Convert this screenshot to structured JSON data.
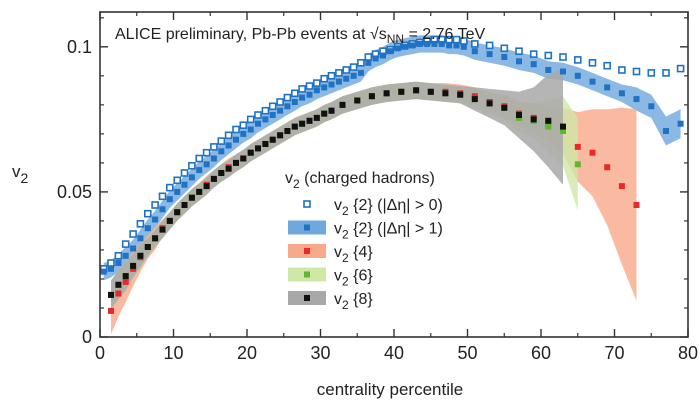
{
  "chart_data": {
    "type": "scatter",
    "title_prefix": "ALICE preliminary, Pb-Pb events at ",
    "title_sqrt": "√",
    "title_s": "s",
    "title_sub": "NN",
    "title_suffix": " = 2.76 TeV",
    "ylabel_main": "v",
    "ylabel_sub": "2",
    "xlabel": "centrality percentile",
    "xlim": [
      0,
      80
    ],
    "ylim": [
      0,
      0.112
    ],
    "xticks": [
      0,
      10,
      20,
      30,
      40,
      50,
      60,
      70,
      80
    ],
    "xtick_labels": [
      "0",
      "10",
      "20",
      "30",
      "40",
      "50",
      "60",
      "70",
      "80"
    ],
    "yticks": [
      0,
      0.05,
      0.1
    ],
    "ytick_labels": [
      "0",
      "0.05",
      "0.1"
    ],
    "grid": false,
    "legend_position": "center-right",
    "legend_title_main": "v",
    "legend_title_sub": "2",
    "legend_title_suffix": " (charged hadrons)",
    "series": [
      {
        "name_main": "v",
        "name_sub": "2",
        "name_suffix": " {2} (|Δη| > 0)",
        "marker": "open-square",
        "color": "#1f72c4",
        "x": [
          0.5,
          1.5,
          2.5,
          3.5,
          4.5,
          5.5,
          6.5,
          7.5,
          8.5,
          9.5,
          10.5,
          11.5,
          12.5,
          13.5,
          14.5,
          15.5,
          16.5,
          17.5,
          18.5,
          19.5,
          20.5,
          21.5,
          22.5,
          23.5,
          24.5,
          25.5,
          26.5,
          27.5,
          28.5,
          29.5,
          30.5,
          31.5,
          32.5,
          33.5,
          34.5,
          35.5,
          36.5,
          37.5,
          38.5,
          39.5,
          40.5,
          41.5,
          42.5,
          43.5,
          44.5,
          45.5,
          46.5,
          47.5,
          48.5,
          49.5,
          51,
          53,
          55,
          57,
          59,
          61,
          63,
          65,
          67,
          69,
          71,
          73,
          75,
          77,
          79
        ],
        "y": [
          0.0235,
          0.0255,
          0.028,
          0.032,
          0.0355,
          0.039,
          0.0425,
          0.0455,
          0.0485,
          0.0515,
          0.054,
          0.0565,
          0.059,
          0.0615,
          0.0635,
          0.0655,
          0.0675,
          0.0695,
          0.0715,
          0.073,
          0.075,
          0.0765,
          0.078,
          0.0795,
          0.081,
          0.0825,
          0.084,
          0.0855,
          0.0865,
          0.0875,
          0.089,
          0.09,
          0.091,
          0.092,
          0.093,
          0.0945,
          0.0965,
          0.0975,
          0.0985,
          0.099,
          0.1,
          0.1005,
          0.101,
          0.1015,
          0.102,
          0.1025,
          0.1025,
          0.1025,
          0.1025,
          0.102,
          0.101,
          0.1005,
          0.0995,
          0.0985,
          0.0975,
          0.097,
          0.0965,
          0.0955,
          0.0945,
          0.0935,
          0.092,
          0.0915,
          0.091,
          0.091,
          0.0925
        ]
      },
      {
        "name_main": "v",
        "name_sub": "2",
        "name_suffix": " {2} (|Δη| > 1)",
        "marker": "filled-square",
        "color": "#1f72c4",
        "band_color": "#6fa8dc",
        "x": [
          0.5,
          1.5,
          2.5,
          3.5,
          4.5,
          5.5,
          6.5,
          7.5,
          8.5,
          9.5,
          10.5,
          11.5,
          12.5,
          13.5,
          14.5,
          15.5,
          16.5,
          17.5,
          18.5,
          19.5,
          20.5,
          21.5,
          22.5,
          23.5,
          24.5,
          25.5,
          26.5,
          27.5,
          28.5,
          29.5,
          30.5,
          31.5,
          32.5,
          33.5,
          34.5,
          35.5,
          36.5,
          37.5,
          38.5,
          39.5,
          40.5,
          41.5,
          42.5,
          43.5,
          44.5,
          45.5,
          46.5,
          47.5,
          48.5,
          49.5,
          51,
          53,
          55,
          57,
          59,
          61,
          63,
          65,
          67,
          69,
          71,
          73,
          75,
          77,
          79
        ],
        "y": [
          0.0225,
          0.0235,
          0.0255,
          0.028,
          0.0305,
          0.034,
          0.0375,
          0.0405,
          0.044,
          0.0475,
          0.05,
          0.0525,
          0.055,
          0.0575,
          0.0595,
          0.0615,
          0.064,
          0.066,
          0.068,
          0.07,
          0.0715,
          0.0735,
          0.075,
          0.0765,
          0.078,
          0.0795,
          0.081,
          0.0825,
          0.0835,
          0.085,
          0.086,
          0.087,
          0.088,
          0.089,
          0.09,
          0.091,
          0.0945,
          0.096,
          0.097,
          0.0985,
          0.0995,
          0.1,
          0.1005,
          0.101,
          0.101,
          0.101,
          0.101,
          0.1005,
          0.1005,
          0.1,
          0.0985,
          0.0975,
          0.0965,
          0.095,
          0.094,
          0.092,
          0.0915,
          0.09,
          0.088,
          0.086,
          0.084,
          0.082,
          0.0795,
          0.071,
          0.0735
        ],
        "band": [
          0.003,
          0.003,
          0.003,
          0.003,
          0.003,
          0.003,
          0.003,
          0.003,
          0.003,
          0.003,
          0.003,
          0.003,
          0.003,
          0.003,
          0.003,
          0.003,
          0.003,
          0.003,
          0.003,
          0.003,
          0.003,
          0.003,
          0.003,
          0.003,
          0.003,
          0.003,
          0.003,
          0.003,
          0.003,
          0.003,
          0.003,
          0.003,
          0.003,
          0.003,
          0.003,
          0.003,
          0.003,
          0.003,
          0.003,
          0.003,
          0.003,
          0.003,
          0.003,
          0.003,
          0.003,
          0.003,
          0.003,
          0.003,
          0.003,
          0.003,
          0.003,
          0.003,
          0.003,
          0.003,
          0.003,
          0.003,
          0.003,
          0.003,
          0.003,
          0.003,
          0.003,
          0.004,
          0.004,
          0.005,
          0.005
        ]
      },
      {
        "name_main": "v",
        "name_sub": "2",
        "name_suffix": " {4}",
        "marker": "filled-square",
        "color": "#e8282a",
        "band_color": "#f7a98a",
        "x": [
          1.5,
          2.5,
          3.5,
          4.5,
          5.5,
          6.5,
          7.5,
          8.5,
          9.5,
          10.5,
          11.5,
          12.5,
          13.5,
          14.5,
          15.5,
          16.5,
          17.5,
          18.5,
          19.5,
          20.5,
          21.5,
          22.5,
          23.5,
          24.5,
          25.5,
          26.5,
          27.5,
          28.5,
          29.5,
          30.5,
          31.5,
          33,
          35,
          37,
          39,
          41,
          43,
          45,
          47,
          49,
          51,
          53,
          55,
          57,
          59,
          61,
          63,
          65,
          67,
          69,
          71,
          73
        ],
        "y": [
          0.009,
          0.015,
          0.019,
          0.0235,
          0.0275,
          0.031,
          0.034,
          0.0375,
          0.04,
          0.043,
          0.0455,
          0.048,
          0.05,
          0.0525,
          0.0545,
          0.0565,
          0.0585,
          0.06,
          0.0615,
          0.0635,
          0.065,
          0.0665,
          0.068,
          0.0695,
          0.071,
          0.0725,
          0.0735,
          0.0745,
          0.0755,
          0.077,
          0.078,
          0.08,
          0.0815,
          0.083,
          0.084,
          0.0845,
          0.085,
          0.0845,
          0.0845,
          0.084,
          0.083,
          0.081,
          0.0795,
          0.077,
          0.0755,
          0.0735,
          0.071,
          0.0655,
          0.0635,
          0.0585,
          0.052,
          0.0455
        ],
        "band": [
          0.008,
          0.008,
          0.007,
          0.006,
          0.005,
          0.004,
          0.004,
          0.003,
          0.003,
          0.003,
          0.003,
          0.003,
          0.003,
          0.003,
          0.003,
          0.003,
          0.003,
          0.003,
          0.003,
          0.003,
          0.003,
          0.003,
          0.003,
          0.003,
          0.003,
          0.003,
          0.003,
          0.003,
          0.003,
          0.003,
          0.003,
          0.003,
          0.003,
          0.003,
          0.003,
          0.003,
          0.003,
          0.003,
          0.003,
          0.003,
          0.003,
          0.003,
          0.004,
          0.004,
          0.005,
          0.006,
          0.008,
          0.012,
          0.015,
          0.02,
          0.027,
          0.033
        ]
      },
      {
        "name_main": "v",
        "name_sub": "2",
        "name_suffix": " {6}",
        "marker": "filled-square",
        "color": "#5db82f",
        "band_color": "#cfe8a8",
        "x": [
          1.5,
          2.5,
          3.5,
          4.5,
          5.5,
          6.5,
          7.5,
          8.5,
          9.5,
          10.5,
          11.5,
          12.5,
          13.5,
          14.5,
          15.5,
          16.5,
          17.5,
          18.5,
          19.5,
          20.5,
          21.5,
          22.5,
          23.5,
          24.5,
          25.5,
          26.5,
          27.5,
          28.5,
          29.5,
          30.5,
          31.5,
          33,
          35,
          37,
          39,
          41,
          43,
          45,
          47,
          49,
          51,
          53,
          55,
          57,
          59,
          61,
          63,
          65
        ],
        "y": [
          0.0145,
          0.018,
          0.021,
          0.0245,
          0.028,
          0.031,
          0.034,
          0.037,
          0.04,
          0.043,
          0.0455,
          0.048,
          0.05,
          0.052,
          0.0545,
          0.0565,
          0.058,
          0.06,
          0.0615,
          0.0635,
          0.065,
          0.0665,
          0.068,
          0.0695,
          0.071,
          0.0725,
          0.0735,
          0.0745,
          0.0755,
          0.077,
          0.078,
          0.08,
          0.0815,
          0.083,
          0.084,
          0.0845,
          0.085,
          0.0845,
          0.084,
          0.0835,
          0.082,
          0.0805,
          0.079,
          0.0755,
          0.0745,
          0.0725,
          0.071,
          0.0595
        ],
        "band": [
          0.005,
          0.005,
          0.005,
          0.004,
          0.004,
          0.003,
          0.003,
          0.003,
          0.003,
          0.003,
          0.003,
          0.003,
          0.003,
          0.003,
          0.003,
          0.003,
          0.003,
          0.003,
          0.003,
          0.003,
          0.003,
          0.003,
          0.003,
          0.003,
          0.003,
          0.003,
          0.003,
          0.003,
          0.003,
          0.003,
          0.003,
          0.003,
          0.003,
          0.003,
          0.003,
          0.003,
          0.003,
          0.003,
          0.003,
          0.003,
          0.003,
          0.004,
          0.004,
          0.005,
          0.006,
          0.009,
          0.012,
          0.016
        ]
      },
      {
        "name_main": "v",
        "name_sub": "2",
        "name_suffix": " {8}",
        "marker": "filled-square",
        "color": "#111111",
        "band_color": "#a8a8a8",
        "x": [
          1.5,
          2.5,
          3.5,
          4.5,
          5.5,
          6.5,
          7.5,
          8.5,
          9.5,
          10.5,
          11.5,
          12.5,
          13.5,
          14.5,
          15.5,
          16.5,
          17.5,
          18.5,
          19.5,
          20.5,
          21.5,
          22.5,
          23.5,
          24.5,
          25.5,
          26.5,
          27.5,
          28.5,
          29.5,
          30.5,
          31.5,
          33,
          35,
          37,
          39,
          41,
          43,
          45,
          47,
          49,
          51,
          53,
          55,
          57,
          59,
          61,
          63
        ],
        "y": [
          0.0145,
          0.018,
          0.021,
          0.0245,
          0.028,
          0.031,
          0.034,
          0.037,
          0.04,
          0.043,
          0.0455,
          0.048,
          0.05,
          0.052,
          0.0545,
          0.0565,
          0.058,
          0.06,
          0.0615,
          0.0635,
          0.065,
          0.0665,
          0.068,
          0.0695,
          0.071,
          0.0725,
          0.0735,
          0.0745,
          0.0755,
          0.077,
          0.078,
          0.08,
          0.0815,
          0.083,
          0.084,
          0.0845,
          0.085,
          0.0845,
          0.084,
          0.0835,
          0.082,
          0.0805,
          0.079,
          0.0765,
          0.075,
          0.0745,
          0.0725
        ],
        "band": [
          0.005,
          0.005,
          0.005,
          0.004,
          0.004,
          0.003,
          0.003,
          0.003,
          0.003,
          0.003,
          0.003,
          0.003,
          0.003,
          0.003,
          0.003,
          0.003,
          0.003,
          0.003,
          0.003,
          0.003,
          0.003,
          0.003,
          0.003,
          0.003,
          0.003,
          0.003,
          0.003,
          0.003,
          0.003,
          0.003,
          0.003,
          0.003,
          0.003,
          0.003,
          0.003,
          0.003,
          0.003,
          0.003,
          0.003,
          0.003,
          0.004,
          0.005,
          0.006,
          0.008,
          0.011,
          0.016,
          0.02
        ]
      }
    ]
  }
}
